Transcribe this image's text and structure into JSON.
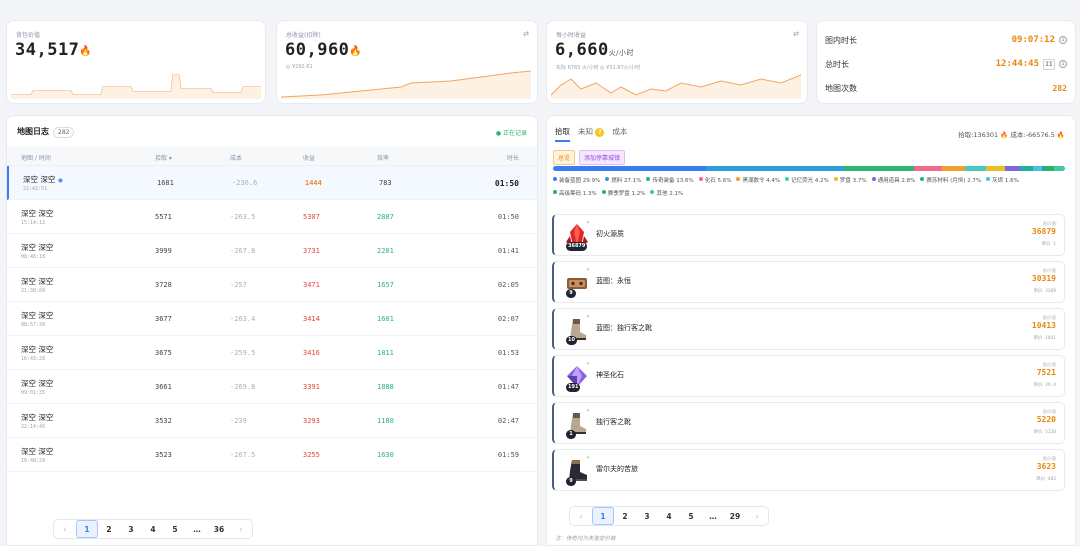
{
  "stats": {
    "bag_value": {
      "label": "背包价值",
      "value": "34,517"
    },
    "total_income": {
      "label": "总收益(扣除)",
      "value": "60,960",
      "sub": "◎ ¥292.61"
    },
    "hourly_income": {
      "label": "每小时收益",
      "value": "6,660",
      "unit": "火/小时",
      "sub": "实际 6783 火/小时   ◎ ¥31.97火/小时"
    },
    "fire_icon": "fire-icon"
  },
  "timers": [
    {
      "label": "图内时长",
      "value": "09:07:12"
    },
    {
      "label": "总时长",
      "value": "12:44:45",
      "pause": "II"
    },
    {
      "label": "地图次数",
      "value": "282"
    }
  ],
  "log": {
    "title": "地图日志",
    "count": "282",
    "live": "● 正在记录",
    "columns": {
      "map_time": "地图 / 时间",
      "pickup": "拾取 ▾",
      "cost": "成本",
      "gain": "收益",
      "efficiency": "效率",
      "duration": "时长"
    },
    "rows": [
      {
        "name": "深空 深空",
        "time": "22:42:51",
        "pickup": "1681",
        "cost": "-236.6",
        "gain": "1444",
        "eff": "783",
        "dur": "01:50",
        "active": true
      },
      {
        "name": "深空 深空",
        "time": "15:14:12",
        "pickup": "5571",
        "cost": "-263.5",
        "gain": "5307",
        "eff": "2887",
        "dur": "01:50"
      },
      {
        "name": "深空 深空",
        "time": "08:48:18",
        "pickup": "3999",
        "cost": "-267.8",
        "gain": "3731",
        "eff": "2201",
        "dur": "01:41"
      },
      {
        "name": "深空 深空",
        "time": "21:38:09",
        "pickup": "3728",
        "cost": "-257",
        "gain": "3471",
        "eff": "1657",
        "dur": "02:05"
      },
      {
        "name": "深空 深空",
        "time": "08:57:38",
        "pickup": "3677",
        "cost": "-263.4",
        "gain": "3414",
        "eff": "1601",
        "dur": "02:07"
      },
      {
        "name": "深空 深空",
        "time": "16:43:28",
        "pickup": "3675",
        "cost": "-259.5",
        "gain": "3416",
        "eff": "1811",
        "dur": "01:53"
      },
      {
        "name": "深空 深空",
        "time": "09:01:35",
        "pickup": "3661",
        "cost": "-269.8",
        "gain": "3391",
        "eff": "1888",
        "dur": "01:47"
      },
      {
        "name": "深空 深空",
        "time": "22:14:46",
        "pickup": "3532",
        "cost": "-239",
        "gain": "3293",
        "eff": "1180",
        "dur": "02:47"
      },
      {
        "name": "深空 深空",
        "time": "16:48:29",
        "pickup": "3523",
        "cost": "-267.5",
        "gain": "3255",
        "eff": "1630",
        "dur": "01:59"
      }
    ],
    "pager": [
      "‹",
      "1",
      "2",
      "3",
      "4",
      "5",
      "…",
      "36",
      "›"
    ]
  },
  "loot": {
    "tabs": [
      "拾取",
      "未知",
      "成本"
    ],
    "unknown_badge": "?",
    "summary": "拾取:136301 🔥  成本:-66576.5 🔥",
    "tag_all": "总览",
    "tag_add": "添加停靠城镇",
    "bar": [
      {
        "color": "#3a7cf2",
        "pct": 29.9
      },
      {
        "color": "#2a9fd8",
        "pct": 27.1
      },
      {
        "color": "#2bb673",
        "pct": 13.6
      },
      {
        "color": "#f06a8a",
        "pct": 5.6
      },
      {
        "color": "#f0a030",
        "pct": 4.4
      },
      {
        "color": "#49c8c0",
        "pct": 4.2
      },
      {
        "color": "#e8c020",
        "pct": 3.7
      },
      {
        "color": "#7a68d8",
        "pct": 2.8
      },
      {
        "color": "#20b0a0",
        "pct": 2.7
      },
      {
        "color": "#4ac0e8",
        "pct": 1.6
      },
      {
        "color": "#30a888",
        "pct": 1.3
      },
      {
        "color": "#28b858",
        "pct": 1.2
      },
      {
        "color": "#40c8a8",
        "pct": 2.1
      }
    ],
    "legend": [
      {
        "label": "装备蓝图 29.9%",
        "color": "#3a7cf2"
      },
      {
        "label": "燃料 27.1%",
        "color": "#2a9fd8"
      },
      {
        "label": "传奇装备 13.6%",
        "color": "#2bb673"
      },
      {
        "label": "化石 5.6%",
        "color": "#f06a8a"
      },
      {
        "label": "黑潮数令 4.4%",
        "color": "#f0a030"
      },
      {
        "label": "记忆荧光 4.2%",
        "color": "#49c8c0"
      },
      {
        "label": "罗盘 3.7%",
        "color": "#e8c020"
      },
      {
        "label": "通用道具 2.8%",
        "color": "#7a68d8"
      },
      {
        "label": "赛苏材料 (月恒) 2.7%",
        "color": "#20b0a0"
      },
      {
        "label": "灰烬 1.6%",
        "color": "#4ac0e8"
      },
      {
        "label": "高级筹码 1.3%",
        "color": "#30a888"
      },
      {
        "label": "赛季罗盘 1.2%",
        "color": "#28b858"
      },
      {
        "label": "其他 2.1%",
        "color": "#40c8a8"
      }
    ],
    "price_label": "总价值",
    "items": [
      {
        "name": "初火源质",
        "qty": "36879",
        "price": "36879",
        "unit": "单价 1",
        "icon": "crystal-icon"
      },
      {
        "name": "蓝图：永恒",
        "qty": "9",
        "price": "30319",
        "unit": "单价 3369",
        "icon": "blueprint-icon"
      },
      {
        "name": "蓝图：独行客之靴",
        "qty": "10",
        "price": "10413",
        "unit": "单价 1041",
        "icon": "boot-icon"
      },
      {
        "name": "神圣化石",
        "qty": "191",
        "price": "7521",
        "unit": "单价 39.4",
        "icon": "gem-icon"
      },
      {
        "name": "独行客之靴",
        "qty": "1",
        "price": "5220",
        "unit": "单价 5220",
        "icon": "boot-icon"
      },
      {
        "name": "雷尔夫的苦旅",
        "qty": "9",
        "price": "3623",
        "unit": "单价 403",
        "icon": "boot-dark-icon"
      }
    ],
    "pager": [
      "‹",
      "1",
      "2",
      "3",
      "4",
      "5",
      "…",
      "29",
      "›"
    ],
    "note": "注：传奇均为未鉴定价格"
  }
}
